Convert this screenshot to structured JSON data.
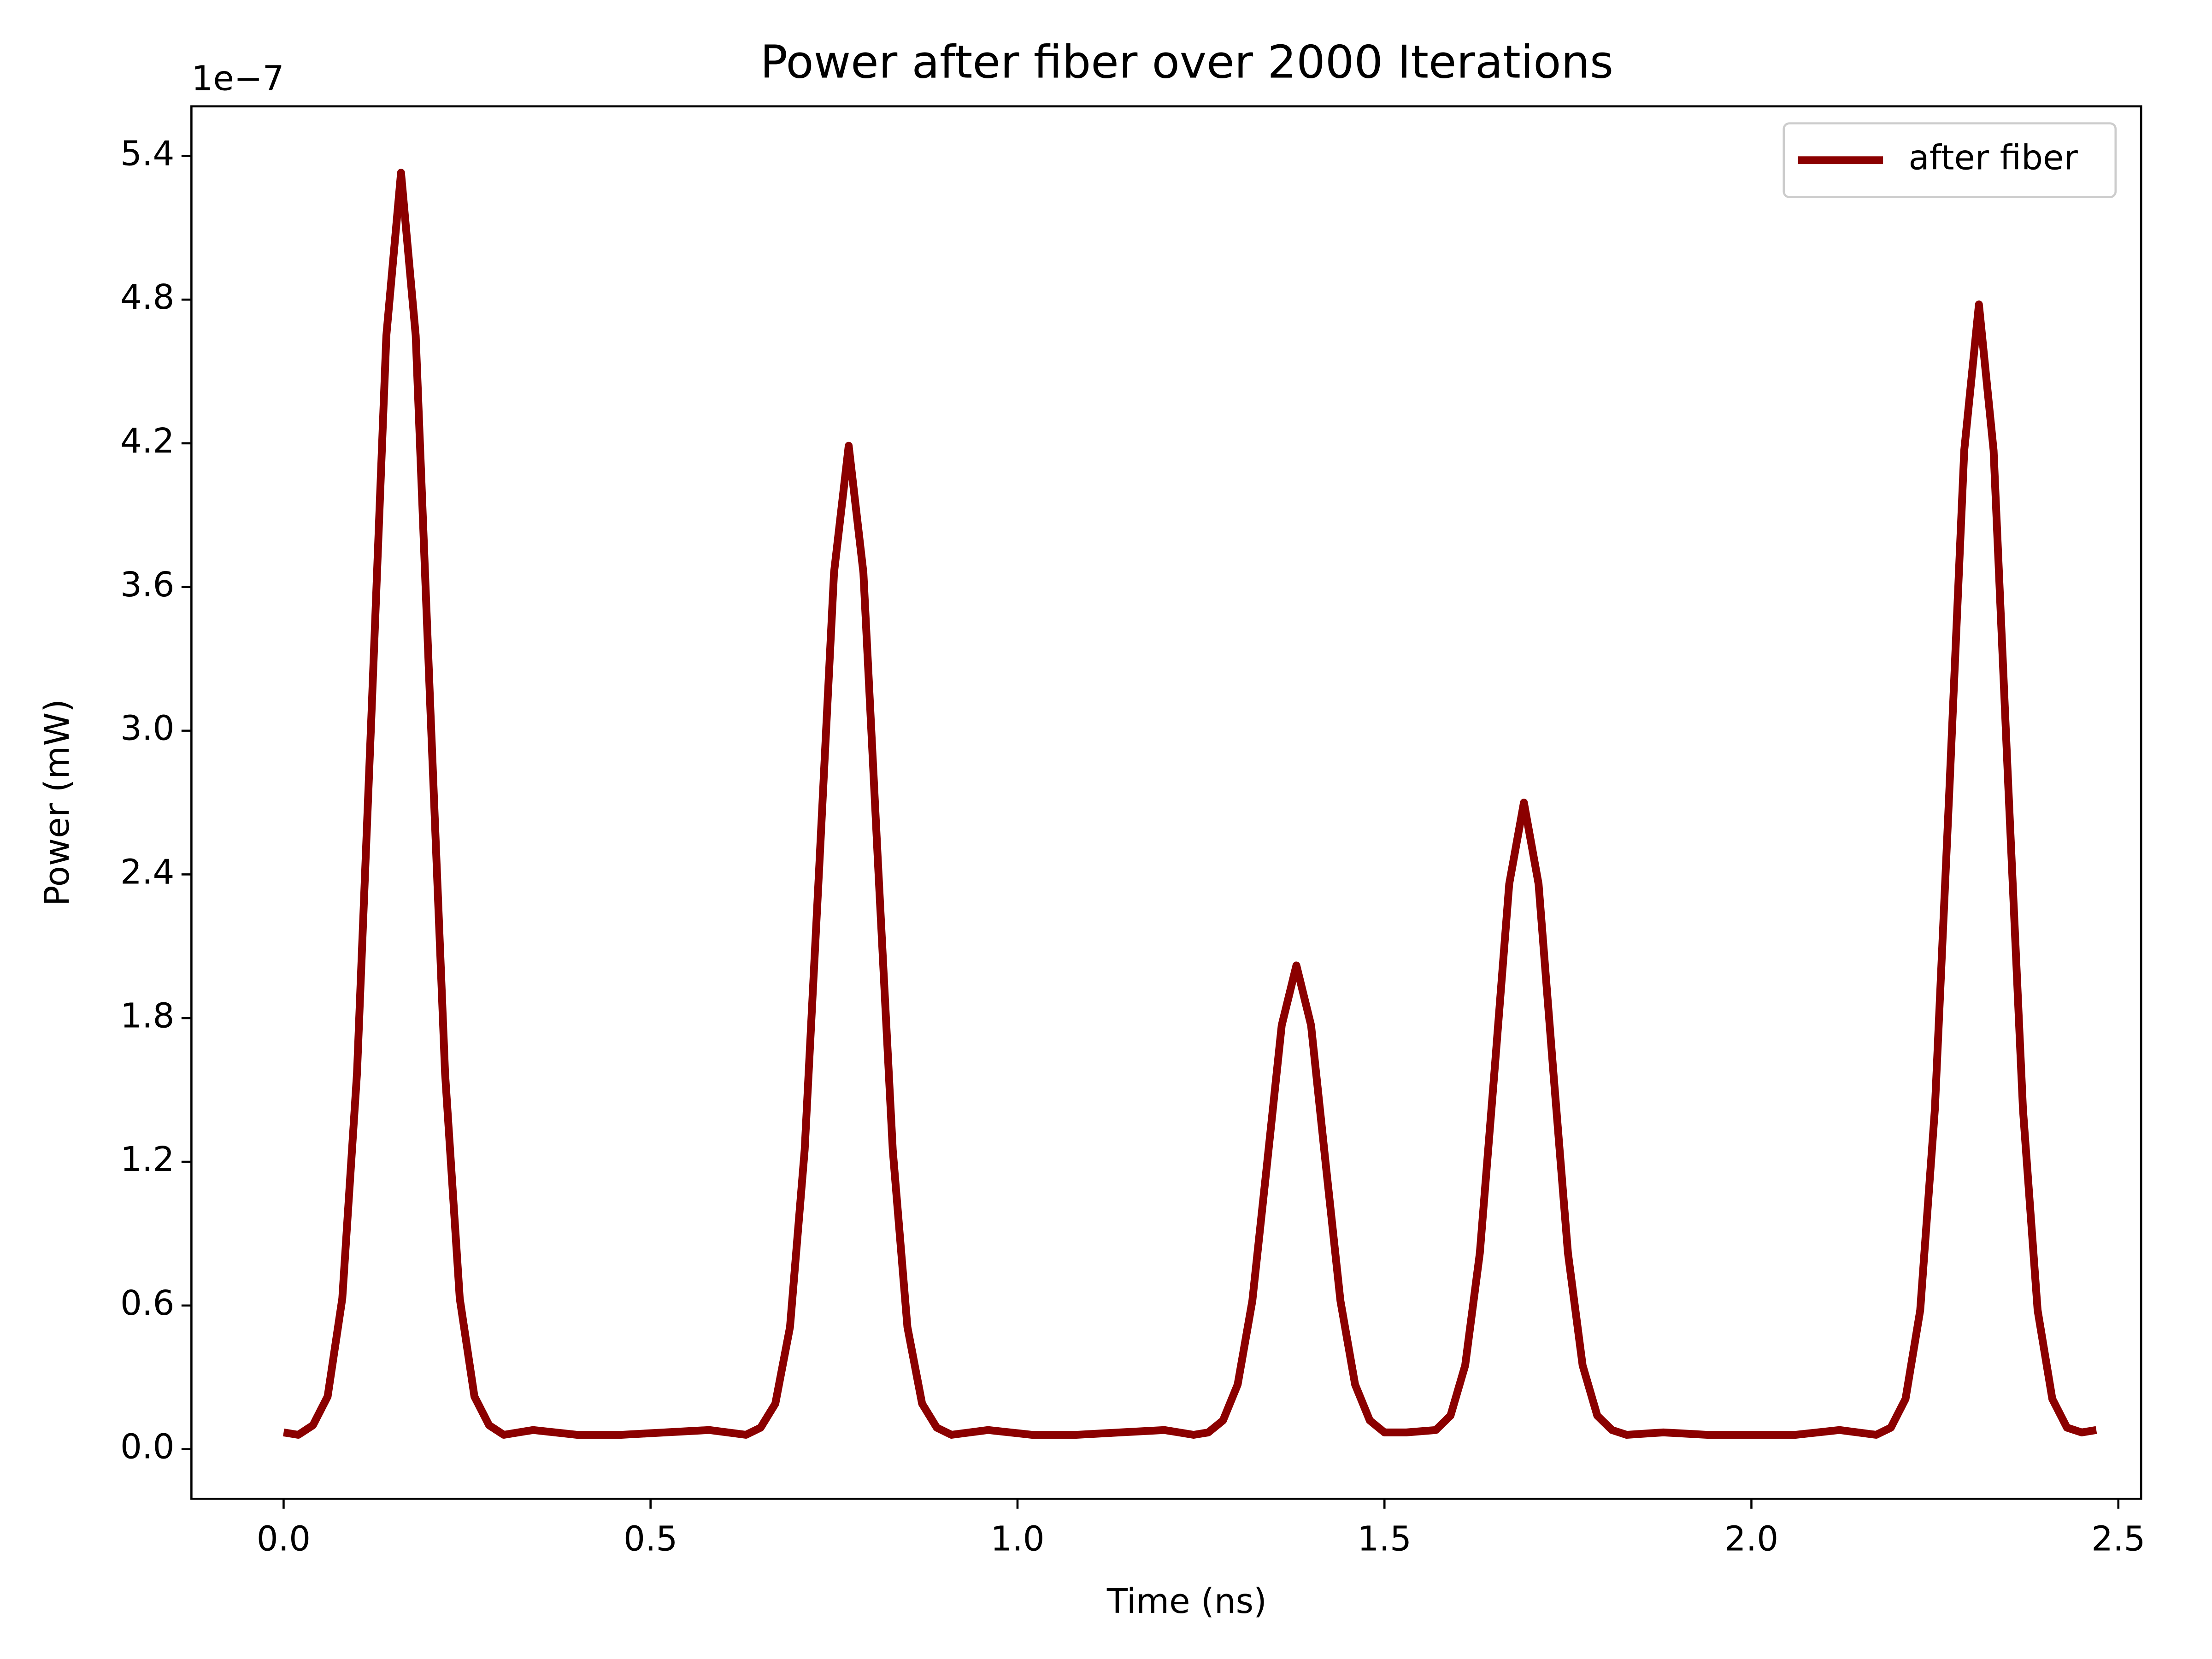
{
  "chart_data": {
    "type": "line",
    "title": "Power after fiber over 2000 Iterations",
    "xlabel": "Time (ns)",
    "ylabel": "Power (mW)",
    "y_offset_label": "1e−7",
    "x": [
      0.0,
      0.02,
      0.04,
      0.06,
      0.08,
      0.1,
      0.12,
      0.14,
      0.16,
      0.18,
      0.2,
      0.22,
      0.24,
      0.26,
      0.28,
      0.3,
      0.34,
      0.4,
      0.46,
      0.52,
      0.58,
      0.63,
      0.65,
      0.67,
      0.69,
      0.71,
      0.73,
      0.75,
      0.77,
      0.79,
      0.81,
      0.83,
      0.85,
      0.87,
      0.89,
      0.91,
      0.96,
      1.02,
      1.08,
      1.14,
      1.2,
      1.24,
      1.26,
      1.28,
      1.3,
      1.32,
      1.34,
      1.36,
      1.38,
      1.4,
      1.42,
      1.44,
      1.46,
      1.48,
      1.5,
      1.53,
      1.57,
      1.59,
      1.61,
      1.63,
      1.65,
      1.67,
      1.69,
      1.71,
      1.73,
      1.75,
      1.77,
      1.79,
      1.81,
      1.83,
      1.88,
      1.94,
      2.0,
      2.06,
      2.12,
      2.17,
      2.19,
      2.21,
      2.23,
      2.25,
      2.27,
      2.29,
      2.31,
      2.33,
      2.35,
      2.37,
      2.39,
      2.41,
      2.43,
      2.45,
      2.47
    ],
    "series": [
      {
        "name": "after fiber",
        "color": "#8b0000",
        "values": [
          0.07,
          0.06,
          0.1,
          0.22,
          0.63,
          1.57,
          3.09,
          4.65,
          5.33,
          4.65,
          3.09,
          1.57,
          0.63,
          0.22,
          0.1,
          0.06,
          0.08,
          0.06,
          0.06,
          0.07,
          0.08,
          0.06,
          0.09,
          0.19,
          0.51,
          1.25,
          2.44,
          3.66,
          4.19,
          3.66,
          2.44,
          1.25,
          0.51,
          0.19,
          0.09,
          0.06,
          0.08,
          0.06,
          0.06,
          0.07,
          0.08,
          0.06,
          0.07,
          0.12,
          0.27,
          0.62,
          1.19,
          1.77,
          2.02,
          1.77,
          1.19,
          0.62,
          0.27,
          0.12,
          0.07,
          0.07,
          0.08,
          0.14,
          0.35,
          0.82,
          1.58,
          2.36,
          2.7,
          2.36,
          1.58,
          0.82,
          0.35,
          0.14,
          0.08,
          0.06,
          0.07,
          0.06,
          0.06,
          0.06,
          0.08,
          0.06,
          0.09,
          0.21,
          0.58,
          1.42,
          2.77,
          4.17,
          4.78,
          4.17,
          2.77,
          1.42,
          0.58,
          0.21,
          0.09,
          0.07,
          0.08
        ]
      }
    ],
    "xlim": [
      -0.1256,
      2.531
    ],
    "ylim": [
      -0.207,
      5.607
    ],
    "xticks": [
      {
        "value": 0,
        "label": "0.0"
      },
      0.5,
      {
        "value": 1,
        "label": "1.0"
      },
      1.5,
      {
        "value": 2,
        "label": "2.0"
      },
      2.5
    ],
    "yticks": [
      {
        "value": 0,
        "label": "0.0"
      },
      0.6,
      1.2,
      1.8,
      2.4,
      {
        "value": 3,
        "label": "3.0"
      },
      3.6,
      4.2,
      4.8,
      5.4
    ],
    "grid": false,
    "legend": "upper right"
  }
}
